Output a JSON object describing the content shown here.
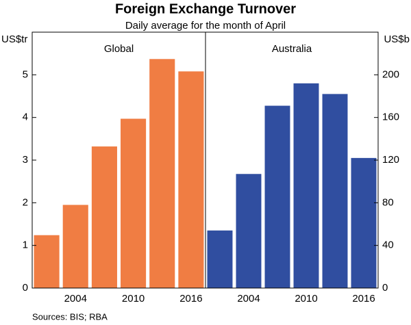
{
  "title": "Foreign Exchange Turnover",
  "subtitle": "Daily average for the month of April",
  "source": "Sources:  BIS; RBA",
  "chart_data": [
    {
      "type": "bar",
      "title": "Global",
      "ylabel": "US$tr",
      "categories": [
        null,
        2004,
        null,
        2010,
        null,
        2016
      ],
      "values": [
        1.24,
        1.95,
        3.32,
        3.97,
        5.37,
        5.08
      ],
      "color": "#f07d43",
      "ylim": [
        0,
        6
      ],
      "yticks": [
        0,
        1,
        2,
        3,
        4,
        5
      ],
      "axis_side": "left"
    },
    {
      "type": "bar",
      "title": "Australia",
      "ylabel": "US$b",
      "categories": [
        null,
        2004,
        null,
        2010,
        null,
        2016
      ],
      "values": [
        54,
        107,
        171,
        192,
        182,
        122
      ],
      "color": "#304ea0",
      "ylim": [
        0,
        240
      ],
      "yticks": [
        0,
        40,
        80,
        120,
        160,
        200
      ],
      "axis_side": "right"
    }
  ]
}
